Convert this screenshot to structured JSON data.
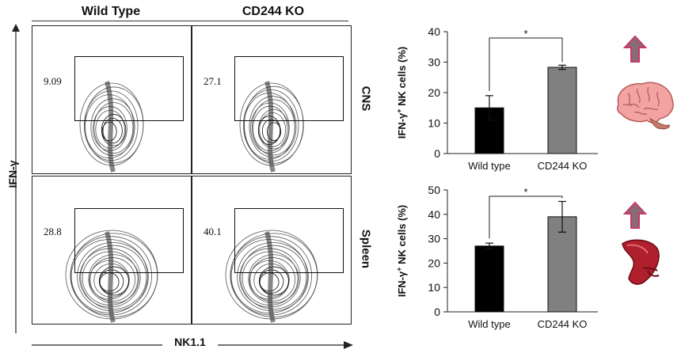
{
  "flow": {
    "columns": [
      "Wild Type",
      "CD244 KO"
    ],
    "rows": [
      "CNS",
      "Spleen"
    ],
    "y_axis_label": "IFN-γ",
    "x_axis_label": "NK1.1",
    "gates": [
      {
        "row": "CNS",
        "column": "Wild Type",
        "percent": "9.09"
      },
      {
        "row": "CNS",
        "column": "CD244 KO",
        "percent": "27.1"
      },
      {
        "row": "Spleen",
        "column": "Wild Type",
        "percent": "28.8"
      },
      {
        "row": "Spleen",
        "column": "CD244 KO",
        "percent": "40.1"
      }
    ]
  },
  "chart_data": [
    {
      "type": "bar",
      "tissue": "CNS",
      "categories": [
        "Wild type",
        "CD244 KO"
      ],
      "values": [
        15,
        28.3
      ],
      "errors": [
        4,
        0.7
      ],
      "ylabel_pre": "IFN-γ",
      "ylabel_sup": "+",
      "ylabel_post": " NK cells (%)",
      "ylim": [
        0,
        40
      ],
      "yticks": [
        0,
        10,
        20,
        30,
        40
      ],
      "significance": "*",
      "bar_colors": [
        "#000000",
        "#808080"
      ],
      "arrow": "up-arrow"
    },
    {
      "type": "bar",
      "tissue": "Spleen",
      "categories": [
        "Wild type",
        "CD244 KO"
      ],
      "values": [
        27,
        39
      ],
      "errors": [
        1.2,
        6.3
      ],
      "ylabel_pre": "IFN-γ",
      "ylabel_sup": "+",
      "ylabel_post": " NK cells (%)",
      "ylim": [
        0,
        50
      ],
      "yticks": [
        0,
        10,
        20,
        30,
        40,
        50
      ],
      "significance": "*",
      "bar_colors": [
        "#000000",
        "#808080"
      ],
      "arrow": "up-arrow"
    }
  ],
  "colors": {
    "arrow_fill": "#8c6b74",
    "arrow_stroke": "#c23a66",
    "brain": "#f4a3a3",
    "spleen": "#b0202c"
  }
}
